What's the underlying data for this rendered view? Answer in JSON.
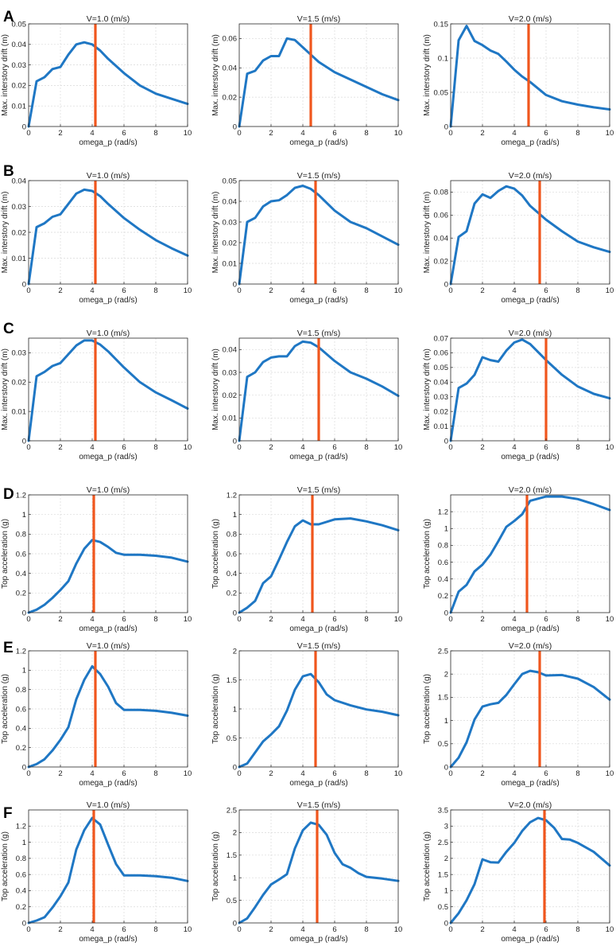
{
  "figure_labels": [
    "A",
    "B",
    "C",
    "D",
    "E",
    "F"
  ],
  "chart_data": [
    {
      "row": "A",
      "type": "line",
      "title": "V=1.0 (m/s)",
      "xlabel": "omega_p (rad/s)",
      "ylabel": "Max. interstory drift (m)",
      "xlim": [
        0,
        10
      ],
      "ylim": [
        0,
        0.05
      ],
      "xticks": [
        0,
        2,
        4,
        6,
        8,
        10
      ],
      "yticks": [
        0,
        0.01,
        0.02,
        0.03,
        0.04,
        0.05
      ],
      "ytick_labels": [
        "0",
        "0.01",
        "0.02",
        "0.03",
        "0.04",
        "0.05"
      ],
      "grid": true,
      "vline": 4.2,
      "x": [
        0,
        0.5,
        1,
        1.5,
        2,
        2.5,
        3,
        3.5,
        4,
        4.5,
        5,
        6,
        7,
        8,
        9,
        10
      ],
      "y": [
        0,
        0.022,
        0.024,
        0.028,
        0.029,
        0.035,
        0.04,
        0.041,
        0.04,
        0.037,
        0.033,
        0.026,
        0.02,
        0.016,
        0.0135,
        0.011
      ]
    },
    {
      "row": "A",
      "type": "line",
      "title": "V=1.5 (m/s)",
      "xlabel": "omega_p (rad/s)",
      "ylabel": "Max. interstory drift (m)",
      "xlim": [
        0,
        10
      ],
      "ylim": [
        0,
        0.07
      ],
      "xticks": [
        0,
        2,
        4,
        6,
        8,
        10
      ],
      "yticks": [
        0,
        0.02,
        0.04,
        0.06
      ],
      "ytick_labels": [
        "0",
        "0.02",
        "0.04",
        "0.06"
      ],
      "grid": true,
      "vline": 4.5,
      "x": [
        0,
        0.5,
        1,
        1.5,
        2,
        2.5,
        3,
        3.5,
        4,
        4.5,
        5,
        6,
        7,
        8,
        9,
        10
      ],
      "y": [
        0,
        0.036,
        0.038,
        0.045,
        0.048,
        0.048,
        0.06,
        0.059,
        0.054,
        0.049,
        0.044,
        0.037,
        0.032,
        0.027,
        0.022,
        0.018
      ]
    },
    {
      "row": "A",
      "type": "line",
      "title": "V=2.0 (m/s)",
      "xlabel": "omega_p (rad/s)",
      "ylabel": "Max. interstory drift (m)",
      "xlim": [
        0,
        10
      ],
      "ylim": [
        0,
        0.15
      ],
      "xticks": [
        0,
        2,
        4,
        6,
        8,
        10
      ],
      "yticks": [
        0,
        0.05,
        0.1,
        0.15
      ],
      "ytick_labels": [
        "0",
        "0.05",
        "0.1",
        "0.15"
      ],
      "grid": true,
      "vline": 4.9,
      "x": [
        0,
        0.5,
        1,
        1.5,
        2,
        2.5,
        3,
        3.5,
        4,
        4.5,
        5,
        6,
        7,
        8,
        9,
        10
      ],
      "y": [
        0,
        0.126,
        0.147,
        0.125,
        0.119,
        0.111,
        0.106,
        0.095,
        0.083,
        0.073,
        0.065,
        0.046,
        0.037,
        0.032,
        0.028,
        0.025
      ]
    },
    {
      "row": "B",
      "type": "line",
      "title": "V=1.0 (m/s)",
      "xlabel": "omega_p (rad/s)",
      "ylabel": "Max. interstory drift (m)",
      "xlim": [
        0,
        10
      ],
      "ylim": [
        0,
        0.04
      ],
      "xticks": [
        0,
        2,
        4,
        6,
        8,
        10
      ],
      "yticks": [
        0,
        0.01,
        0.02,
        0.03,
        0.04
      ],
      "ytick_labels": [
        "0",
        "0.01",
        "0.02",
        "0.03",
        "0.04"
      ],
      "grid": true,
      "vline": 4.2,
      "x": [
        0,
        0.5,
        1,
        1.5,
        2,
        2.5,
        3,
        3.5,
        4,
        4.5,
        5,
        6,
        7,
        8,
        9,
        10
      ],
      "y": [
        0,
        0.022,
        0.0235,
        0.026,
        0.027,
        0.031,
        0.035,
        0.0365,
        0.036,
        0.034,
        0.031,
        0.0255,
        0.021,
        0.017,
        0.0138,
        0.011
      ]
    },
    {
      "row": "B",
      "type": "line",
      "title": "V=1.5 (m/s)",
      "xlabel": "omega_p (rad/s)",
      "ylabel": "Max. interstory drift (m)",
      "xlim": [
        0,
        10
      ],
      "ylim": [
        0,
        0.05
      ],
      "xticks": [
        0,
        2,
        4,
        6,
        8,
        10
      ],
      "yticks": [
        0,
        0.01,
        0.02,
        0.03,
        0.04,
        0.05
      ],
      "ytick_labels": [
        "0",
        "0.01",
        "0.02",
        "0.03",
        "0.04",
        "0.05"
      ],
      "grid": true,
      "vline": 4.8,
      "x": [
        0,
        0.5,
        1,
        1.5,
        2,
        2.5,
        3,
        3.5,
        4,
        4.5,
        5,
        6,
        7,
        8,
        9,
        10
      ],
      "y": [
        0,
        0.03,
        0.032,
        0.0375,
        0.04,
        0.0405,
        0.043,
        0.0465,
        0.0475,
        0.046,
        0.043,
        0.0355,
        0.03,
        0.027,
        0.023,
        0.019
      ]
    },
    {
      "row": "B",
      "type": "line",
      "title": "V=2.0 (m/s)",
      "xlabel": "omega_p (rad/s)",
      "ylabel": "Max. interstory drift (m)",
      "xlim": [
        0,
        10
      ],
      "ylim": [
        0,
        0.09
      ],
      "xticks": [
        0,
        2,
        4,
        6,
        8,
        10
      ],
      "yticks": [
        0,
        0.02,
        0.04,
        0.06,
        0.08
      ],
      "ytick_labels": [
        "0",
        "0.02",
        "0.04",
        "0.06",
        "0.08"
      ],
      "grid": true,
      "vline": 5.6,
      "x": [
        0,
        0.5,
        1,
        1.5,
        2,
        2.5,
        3,
        3.5,
        4,
        4.5,
        5,
        6,
        7,
        8,
        9,
        10
      ],
      "y": [
        0,
        0.041,
        0.046,
        0.07,
        0.078,
        0.075,
        0.081,
        0.085,
        0.083,
        0.077,
        0.068,
        0.056,
        0.046,
        0.037,
        0.032,
        0.028
      ]
    },
    {
      "row": "C",
      "type": "line",
      "title": "V=1.0 (m/s)",
      "xlabel": "omega_p (rad/s)",
      "ylabel": "Max. interstory drift (m)",
      "xlim": [
        0,
        10
      ],
      "ylim": [
        0,
        0.035
      ],
      "xticks": [
        0,
        2,
        4,
        6,
        8,
        10
      ],
      "yticks": [
        0,
        0.01,
        0.02,
        0.03
      ],
      "ytick_labels": [
        "0",
        "0.01",
        "0.02",
        "0.03"
      ],
      "grid": true,
      "vline": 4.2,
      "x": [
        0,
        0.5,
        1,
        1.5,
        2,
        2.5,
        3,
        3.5,
        4,
        4.5,
        5,
        6,
        7,
        8,
        9,
        10
      ],
      "y": [
        0,
        0.022,
        0.0235,
        0.0255,
        0.0265,
        0.0295,
        0.0325,
        0.0342,
        0.0342,
        0.0328,
        0.0305,
        0.025,
        0.02,
        0.0165,
        0.0138,
        0.011
      ]
    },
    {
      "row": "C",
      "type": "line",
      "title": "V=1.5 (m/s)",
      "xlabel": "omega_p (rad/s)",
      "ylabel": "Max. interstory drift (m)",
      "xlim": [
        0,
        10
      ],
      "ylim": [
        0,
        0.045
      ],
      "xticks": [
        0,
        2,
        4,
        6,
        8,
        10
      ],
      "yticks": [
        0,
        0.01,
        0.02,
        0.03,
        0.04
      ],
      "ytick_labels": [
        "0",
        "0.01",
        "0.02",
        "0.03",
        "0.04"
      ],
      "grid": true,
      "vline": 5.0,
      "x": [
        0,
        0.5,
        1,
        1.5,
        2,
        2.5,
        3,
        3.5,
        4,
        4.5,
        5,
        6,
        7,
        8,
        9,
        10
      ],
      "y": [
        0,
        0.028,
        0.03,
        0.0345,
        0.0365,
        0.037,
        0.037,
        0.0415,
        0.0435,
        0.043,
        0.041,
        0.035,
        0.03,
        0.0272,
        0.0238,
        0.0197
      ]
    },
    {
      "row": "C",
      "type": "line",
      "title": "V=2.0 (m/s)",
      "xlabel": "omega_p (rad/s)",
      "ylabel": "Max. interstory drift (m)",
      "xlim": [
        0,
        10
      ],
      "ylim": [
        0,
        0.07
      ],
      "xticks": [
        0,
        2,
        4,
        6,
        8,
        10
      ],
      "yticks": [
        0,
        0.01,
        0.02,
        0.03,
        0.04,
        0.05,
        0.06,
        0.07
      ],
      "ytick_labels": [
        "0",
        "0.01",
        "0.02",
        "0.03",
        "0.04",
        "0.05",
        "0.06",
        "0.07"
      ],
      "grid": true,
      "vline": 6.0,
      "x": [
        0,
        0.5,
        1,
        1.5,
        2,
        2.5,
        3,
        3.5,
        4,
        4.5,
        5,
        6,
        7,
        8,
        9,
        10
      ],
      "y": [
        0,
        0.036,
        0.039,
        0.045,
        0.057,
        0.055,
        0.054,
        0.0615,
        0.067,
        0.069,
        0.066,
        0.055,
        0.045,
        0.037,
        0.032,
        0.029
      ]
    },
    {
      "row": "D",
      "type": "line",
      "title": "V=1.0 (m/s)",
      "xlabel": "omega_p (rad/s)",
      "ylabel": "Top acceleration (g)",
      "xlim": [
        0,
        10
      ],
      "ylim": [
        0,
        1.2
      ],
      "xticks": [
        0,
        2,
        4,
        6,
        8,
        10
      ],
      "yticks": [
        0,
        0.2,
        0.4,
        0.6,
        0.8,
        1,
        1.2
      ],
      "ytick_labels": [
        "0",
        "0.2",
        "0.4",
        "0.6",
        "0.8",
        "1",
        "1.2"
      ],
      "grid": true,
      "vline": 4.1,
      "x": [
        0,
        0.5,
        1,
        1.5,
        2,
        2.5,
        3,
        3.5,
        4,
        4.5,
        5,
        5.5,
        6,
        7,
        8,
        9,
        10
      ],
      "y": [
        0,
        0.03,
        0.08,
        0.15,
        0.23,
        0.32,
        0.5,
        0.65,
        0.74,
        0.72,
        0.67,
        0.61,
        0.59,
        0.59,
        0.58,
        0.56,
        0.52
      ]
    },
    {
      "row": "D",
      "type": "line",
      "title": "V=1.5 (m/s)",
      "xlabel": "omega_p (rad/s)",
      "ylabel": "Top acceleration (g)",
      "xlim": [
        0,
        10
      ],
      "ylim": [
        0,
        1.2
      ],
      "xticks": [
        0,
        2,
        4,
        6,
        8,
        10
      ],
      "yticks": [
        0,
        0.2,
        0.4,
        0.6,
        0.8,
        1,
        1.2
      ],
      "ytick_labels": [
        "0",
        "0.2",
        "0.4",
        "0.6",
        "0.8",
        "1",
        "1.2"
      ],
      "grid": true,
      "vline": 4.6,
      "x": [
        0,
        0.5,
        1,
        1.5,
        2,
        2.5,
        3,
        3.5,
        4,
        4.5,
        5,
        6,
        7,
        8,
        9,
        10
      ],
      "y": [
        0,
        0.05,
        0.12,
        0.3,
        0.37,
        0.54,
        0.72,
        0.88,
        0.94,
        0.9,
        0.9,
        0.95,
        0.96,
        0.93,
        0.89,
        0.84
      ]
    },
    {
      "row": "D",
      "type": "line",
      "title": "V=2.0 (m/s)",
      "xlabel": "omega_p (rad/s)",
      "ylabel": "Top acceleration (g)",
      "xlim": [
        0,
        10
      ],
      "ylim": [
        0,
        1.4
      ],
      "xticks": [
        0,
        2,
        4,
        6,
        8,
        10
      ],
      "yticks": [
        0,
        0.2,
        0.4,
        0.6,
        0.8,
        1,
        1.2
      ],
      "ytick_labels": [
        "0",
        "0.2",
        "0.4",
        "0.6",
        "0.8",
        "1",
        "1.2"
      ],
      "grid": true,
      "vline": 4.8,
      "x": [
        0,
        0.5,
        1,
        1.5,
        2,
        2.5,
        3,
        3.5,
        4,
        4.5,
        5,
        6,
        7,
        8,
        9,
        10
      ],
      "y": [
        0,
        0.25,
        0.33,
        0.49,
        0.57,
        0.69,
        0.85,
        1.02,
        1.09,
        1.17,
        1.33,
        1.38,
        1.38,
        1.35,
        1.29,
        1.22
      ]
    },
    {
      "row": "E",
      "type": "line",
      "title": "V=1.0 (m/s)",
      "xlabel": "omega_p (rad/s)",
      "ylabel": "Top acceleration (g)",
      "xlim": [
        0,
        10
      ],
      "ylim": [
        0,
        1.2
      ],
      "xticks": [
        0,
        2,
        4,
        6,
        8,
        10
      ],
      "yticks": [
        0,
        0.2,
        0.4,
        0.6,
        0.8,
        1,
        1.2
      ],
      "ytick_labels": [
        "0",
        "0.2",
        "0.4",
        "0.6",
        "0.8",
        "1",
        "1.2"
      ],
      "grid": true,
      "vline": 4.2,
      "x": [
        0,
        0.5,
        1,
        1.5,
        2,
        2.5,
        3,
        3.5,
        4,
        4.5,
        5,
        5.5,
        6,
        7,
        8,
        9,
        10
      ],
      "y": [
        0,
        0.03,
        0.08,
        0.17,
        0.28,
        0.41,
        0.7,
        0.9,
        1.04,
        0.96,
        0.83,
        0.66,
        0.59,
        0.59,
        0.58,
        0.56,
        0.53
      ]
    },
    {
      "row": "E",
      "type": "line",
      "title": "V=1.5 (m/s)",
      "xlabel": "omega_p (rad/s)",
      "ylabel": "Top acceleration (g)",
      "xlim": [
        0,
        10
      ],
      "ylim": [
        0,
        2
      ],
      "xticks": [
        0,
        2,
        4,
        6,
        8,
        10
      ],
      "yticks": [
        0,
        0.5,
        1,
        1.5,
        2
      ],
      "ytick_labels": [
        "0",
        "0.5",
        "1",
        "1.5",
        "2"
      ],
      "grid": true,
      "vline": 4.8,
      "x": [
        0,
        0.5,
        1,
        1.5,
        2,
        2.5,
        3,
        3.5,
        4,
        4.5,
        5,
        5.5,
        6,
        7,
        8,
        9,
        10
      ],
      "y": [
        0,
        0.06,
        0.25,
        0.44,
        0.56,
        0.7,
        0.97,
        1.33,
        1.56,
        1.6,
        1.46,
        1.25,
        1.15,
        1.06,
        0.99,
        0.95,
        0.89
      ]
    },
    {
      "row": "E",
      "type": "line",
      "title": "V=2.0 (m/s)",
      "xlabel": "omega_p (rad/s)",
      "ylabel": "Top acceleration (g)",
      "xlim": [
        0,
        10
      ],
      "ylim": [
        0,
        2.5
      ],
      "xticks": [
        0,
        2,
        4,
        6,
        8,
        10
      ],
      "yticks": [
        0,
        0.5,
        1,
        1.5,
        2,
        2.5
      ],
      "ytick_labels": [
        "0",
        "0.5",
        "1",
        "1.5",
        "2",
        "2.5"
      ],
      "grid": true,
      "vline": 5.6,
      "x": [
        0,
        0.5,
        1,
        1.5,
        2,
        2.5,
        3,
        3.5,
        4,
        4.5,
        5,
        5.5,
        6,
        7,
        8,
        9,
        10
      ],
      "y": [
        0,
        0.2,
        0.53,
        1.02,
        1.3,
        1.35,
        1.38,
        1.55,
        1.78,
        2.0,
        2.07,
        2.04,
        1.97,
        1.98,
        1.9,
        1.72,
        1.45
      ]
    },
    {
      "row": "F",
      "type": "line",
      "title": "V=1.0 (m/s)",
      "xlabel": "omega_p (rad/s)",
      "ylabel": "Top acceleration (g)",
      "xlim": [
        0,
        10
      ],
      "ylim": [
        0,
        1.4
      ],
      "xticks": [
        0,
        2,
        4,
        6,
        8,
        10
      ],
      "yticks": [
        0,
        0.2,
        0.4,
        0.6,
        0.8,
        1,
        1.2
      ],
      "ytick_labels": [
        "0",
        "0.2",
        "0.4",
        "0.6",
        "0.8",
        "1",
        "1.2"
      ],
      "grid": true,
      "vline": 4.1,
      "x": [
        0,
        0.5,
        1,
        1.5,
        2,
        2.5,
        3,
        3.5,
        4,
        4.5,
        5,
        5.5,
        6,
        7,
        8,
        9,
        10
      ],
      "y": [
        0,
        0.03,
        0.07,
        0.19,
        0.33,
        0.5,
        0.91,
        1.15,
        1.3,
        1.22,
        0.97,
        0.73,
        0.59,
        0.59,
        0.58,
        0.56,
        0.52
      ]
    },
    {
      "row": "F",
      "type": "line",
      "title": "V=1.5 (m/s)",
      "xlabel": "omega_p (rad/s)",
      "ylabel": "Top acceleration (g)",
      "xlim": [
        0,
        10
      ],
      "ylim": [
        0,
        2.5
      ],
      "xticks": [
        0,
        2,
        4,
        6,
        8,
        10
      ],
      "yticks": [
        0,
        0.5,
        1,
        1.5,
        2,
        2.5
      ],
      "ytick_labels": [
        "0",
        "0.5",
        "1",
        "1.5",
        "2",
        "2.5"
      ],
      "grid": true,
      "vline": 4.9,
      "x": [
        0,
        0.5,
        1,
        1.5,
        2,
        2.5,
        3,
        3.5,
        4,
        4.5,
        5,
        5.5,
        6,
        6.5,
        7,
        7.5,
        8,
        9,
        10
      ],
      "y": [
        0,
        0.1,
        0.35,
        0.62,
        0.85,
        0.96,
        1.08,
        1.65,
        2.05,
        2.22,
        2.17,
        1.95,
        1.55,
        1.3,
        1.22,
        1.1,
        1.02,
        0.98,
        0.93
      ]
    },
    {
      "row": "F",
      "type": "line",
      "title": "V=2.0 (m/s)",
      "xlabel": "omega_p (rad/s)",
      "ylabel": "Top acceleration (g)",
      "xlim": [
        0,
        10
      ],
      "ylim": [
        0,
        3.5
      ],
      "xticks": [
        0,
        2,
        4,
        6,
        8,
        10
      ],
      "yticks": [
        0,
        0.5,
        1,
        1.5,
        2,
        2.5,
        3,
        3.5
      ],
      "ytick_labels": [
        "0",
        "0.5",
        "1",
        "1.5",
        "2",
        "2.5",
        "3",
        "3.5"
      ],
      "grid": true,
      "vline": 5.9,
      "x": [
        0,
        0.5,
        1,
        1.5,
        2,
        2.5,
        3,
        3.5,
        4,
        4.5,
        5,
        5.5,
        6,
        6.5,
        7,
        7.5,
        8,
        9,
        10
      ],
      "y": [
        0,
        0.3,
        0.7,
        1.2,
        1.97,
        1.88,
        1.87,
        2.2,
        2.48,
        2.85,
        3.12,
        3.25,
        3.18,
        2.95,
        2.6,
        2.58,
        2.48,
        2.2,
        1.78
      ]
    }
  ]
}
